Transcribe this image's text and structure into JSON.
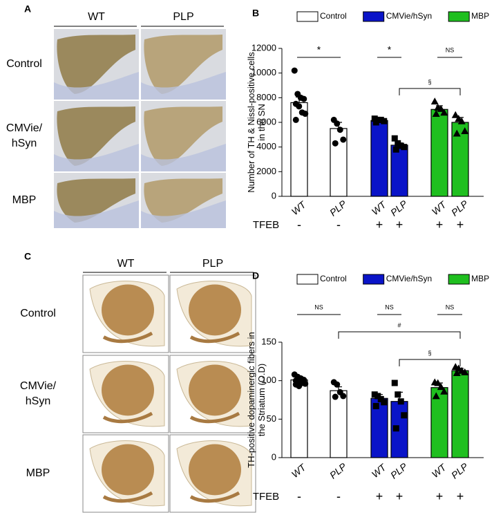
{
  "panels": [
    {
      "label": "A",
      "columns": [
        "WT",
        "PLP"
      ],
      "rows": [
        {
          "label": [
            "Control"
          ],
          "color": "#000000"
        },
        {
          "label": [
            "CMVie/",
            "hSyn"
          ],
          "color": "#3a5fcd"
        },
        {
          "label": [
            "MBP"
          ],
          "color": "#1e9a3c"
        }
      ]
    },
    {
      "label": "C",
      "columns": [
        "WT",
        "PLP"
      ],
      "rows": [
        {
          "label": [
            "Control"
          ],
          "color": "#000000"
        },
        {
          "label": [
            "CMVie/",
            "hSyn"
          ],
          "color": "#3a5fcd"
        },
        {
          "label": [
            "MBP"
          ],
          "color": "#1e9a3c"
        }
      ]
    }
  ],
  "chart_data": [
    {
      "type": "bar",
      "label": "B",
      "y_label": [
        "Number of TH & Nissl-positive cells",
        "in the SN"
      ],
      "categories": [
        "WT",
        "PLP",
        "WT",
        "PLP",
        "WT",
        "PLP"
      ],
      "row_label": "TFEB",
      "row_values": [
        "-",
        "-",
        "+",
        "+",
        "+",
        "+"
      ],
      "ylim": [
        0,
        12000
      ],
      "yticks": [
        0,
        2000,
        4000,
        6000,
        8000,
        10000,
        12000
      ],
      "series": [
        {
          "name": "Control",
          "color": "#ffffff",
          "marker": "circle",
          "values": [
            7600,
            5500,
            null,
            null,
            null,
            null
          ],
          "errors": [
            450,
            500,
            null,
            null,
            null,
            null
          ],
          "points": [
            [
              10200,
              8300,
              8000,
              7900,
              7500,
              7300,
              6800,
              6700,
              6200
            ],
            [
              6200,
              5900,
              5400,
              4600,
              4300
            ],
            null,
            null,
            null,
            null
          ]
        },
        {
          "name": "CMVie/hSyn",
          "color": "#0a14c8",
          "marker": "square",
          "values": [
            null,
            null,
            6150,
            4150,
            null,
            null
          ],
          "errors": [
            null,
            null,
            80,
            180,
            null,
            null
          ],
          "points": [
            null,
            null,
            [
              6300,
              6200,
              6200,
              6100,
              6000
            ],
            [
              4700,
              4300,
              4100,
              4000,
              3800
            ],
            null,
            null
          ]
        },
        {
          "name": "MBP",
          "color": "#1fbf1f",
          "marker": "triangle",
          "values": [
            null,
            null,
            null,
            null,
            7050,
            6000
          ],
          "errors": [
            null,
            null,
            null,
            null,
            300,
            400
          ],
          "points": [
            null,
            null,
            null,
            null,
            [
              7700,
              7200,
              7100,
              6800,
              6700
            ],
            [
              6600,
              6300,
              6100,
              5300,
              5100
            ]
          ]
        }
      ],
      "annotations": [
        {
          "text": "*",
          "from": 0,
          "to": 1
        },
        {
          "text": "*",
          "from": 2,
          "to": 3
        },
        {
          "text": "NS",
          "from": 4,
          "to": 5
        },
        {
          "text": "§",
          "from": 3,
          "to": 5
        }
      ]
    },
    {
      "type": "bar",
      "label": "D",
      "y_label": [
        "TH-positive dopaminergic fibers in",
        "the Striatum (O.D)"
      ],
      "categories": [
        "WT",
        "PLP",
        "WT",
        "PLP",
        "WT",
        "PLP"
      ],
      "row_label": "TFEB",
      "row_values": [
        "-",
        "-",
        "+",
        "+",
        "+",
        "+"
      ],
      "ylim": [
        0,
        150
      ],
      "yticks": [
        0,
        50,
        100,
        150
      ],
      "series": [
        {
          "name": "Control",
          "color": "#ffffff",
          "marker": "circle",
          "values": [
            101,
            87,
            null,
            null,
            null,
            null
          ],
          "errors": [
            3,
            5,
            null,
            null,
            null,
            null
          ],
          "points": [
            [
              108,
              105,
              103,
              101,
              100,
              99,
              97,
              96,
              95,
              93
            ],
            [
              98,
              95,
              85,
              80,
              79
            ],
            null,
            null,
            null,
            null
          ]
        },
        {
          "name": "CMVie/hSyn",
          "color": "#0a14c8",
          "marker": "square",
          "values": [
            null,
            null,
            77,
            73,
            null,
            null
          ],
          "errors": [
            null,
            null,
            5,
            12,
            null,
            null
          ],
          "points": [
            null,
            null,
            [
              82,
              80,
              76,
              72,
              67
            ],
            [
              97,
              82,
              73,
              55,
              38
            ],
            null,
            null
          ]
        },
        {
          "name": "MBP",
          "color": "#1fbf1f",
          "marker": "triangle",
          "values": [
            null,
            null,
            null,
            null,
            91,
            113
          ],
          "errors": [
            null,
            null,
            null,
            null,
            6,
            3
          ],
          "points": [
            null,
            null,
            null,
            null,
            [
              98,
              97,
              92,
              86,
              80
            ],
            [
              118,
              116,
              113,
              111,
              110
            ]
          ]
        }
      ],
      "annotations": [
        {
          "text": "NS",
          "from": 0,
          "to": 1
        },
        {
          "text": "NS",
          "from": 2,
          "to": 3
        },
        {
          "text": "NS",
          "from": 4,
          "to": 5
        },
        {
          "text": "#",
          "from": 1,
          "to": 5
        },
        {
          "text": "§",
          "from": 3,
          "to": 5
        }
      ]
    }
  ]
}
